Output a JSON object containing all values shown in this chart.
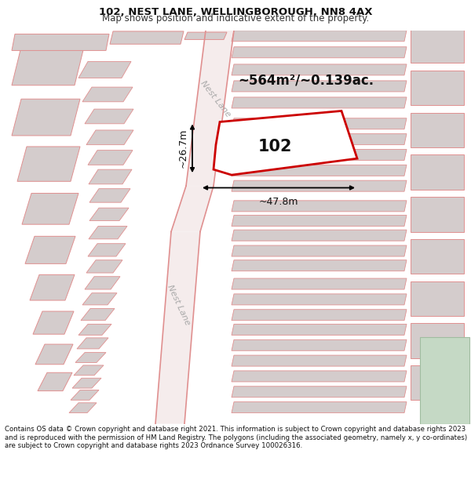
{
  "title_line1": "102, NEST LANE, WELLINGBOROUGH, NN8 4AX",
  "title_line2": "Map shows position and indicative extent of the property.",
  "footer_text": "Contains OS data © Crown copyright and database right 2021. This information is subject to Crown copyright and database rights 2023 and is reproduced with the permission of HM Land Registry. The polygons (including the associated geometry, namely x, y co-ordinates) are subject to Crown copyright and database rights 2023 Ordnance Survey 100026316.",
  "area_label": "~564m²/~0.139ac.",
  "width_label": "~47.8m",
  "height_label": "~26.7m",
  "property_number": "102",
  "road_label_upper": "Nest Lane",
  "road_label_lower": "Nest Lane",
  "bg_color": "#ffffff",
  "map_bg": "#f7f0f0",
  "building_fill": "#d4cccc",
  "building_edge": "#e09090",
  "property_edge": "#cc0000",
  "property_fill": "#ffffff",
  "green_fill": "#c5d9c5",
  "green_edge": "#a0bca0",
  "road_edge": "#e09090",
  "title_fontsize": 9.5,
  "subtitle_fontsize": 8.5,
  "footer_fontsize": 6.2,
  "area_fontsize": 12,
  "dim_fontsize": 9,
  "road_fontsize": 8,
  "prop_num_fontsize": 15
}
